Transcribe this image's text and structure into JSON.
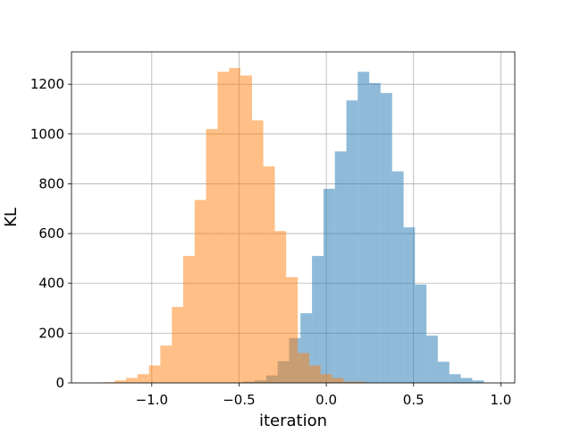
{
  "chart_data": {
    "type": "bar",
    "title": "",
    "xlabel": "iteration",
    "ylabel": "KL",
    "xlim": [
      -1.46,
      1.08
    ],
    "ylim": [
      0,
      1330
    ],
    "grid": true,
    "legend": "none",
    "xticks": [
      -1.0,
      -0.5,
      0.0,
      0.5,
      1.0
    ],
    "xtick_labels": [
      "−1.0",
      "−0.5",
      "0.0",
      "0.5",
      "1.0"
    ],
    "yticks": [
      0,
      200,
      400,
      600,
      800,
      1000,
      1200
    ],
    "ytick_labels": [
      "0",
      "200",
      "400",
      "600",
      "800",
      "1000",
      "1200"
    ],
    "series": [
      {
        "color": "#1f77b4",
        "opacity": 0.5,
        "bin_edges": [
          -0.541,
          -0.475,
          -0.41,
          -0.344,
          -0.279,
          -0.213,
          -0.148,
          -0.082,
          -0.016,
          0.049,
          0.115,
          0.18,
          0.246,
          0.311,
          0.377,
          0.443,
          0.508,
          0.574,
          0.639,
          0.705,
          0.77,
          0.836,
          0.902
        ],
        "counts": [
          2,
          5,
          10,
          30,
          87,
          180,
          280,
          510,
          780,
          930,
          1135,
          1250,
          1205,
          1165,
          850,
          625,
          395,
          190,
          85,
          35,
          20,
          10
        ]
      },
      {
        "color": "#ff7f0e",
        "opacity": 0.5,
        "bin_edges": [
          -1.279,
          -1.213,
          -1.148,
          -1.082,
          -1.016,
          -0.951,
          -0.885,
          -0.82,
          -0.754,
          -0.689,
          -0.623,
          -0.557,
          -0.492,
          -0.426,
          -0.361,
          -0.295,
          -0.23,
          -0.164,
          -0.098,
          -0.033,
          0.033,
          0.098,
          0.164,
          0.23
        ],
        "counts": [
          3,
          10,
          20,
          35,
          70,
          150,
          305,
          510,
          735,
          1020,
          1250,
          1265,
          1235,
          1055,
          870,
          610,
          425,
          120,
          70,
          35,
          20,
          5,
          5
        ]
      }
    ]
  }
}
